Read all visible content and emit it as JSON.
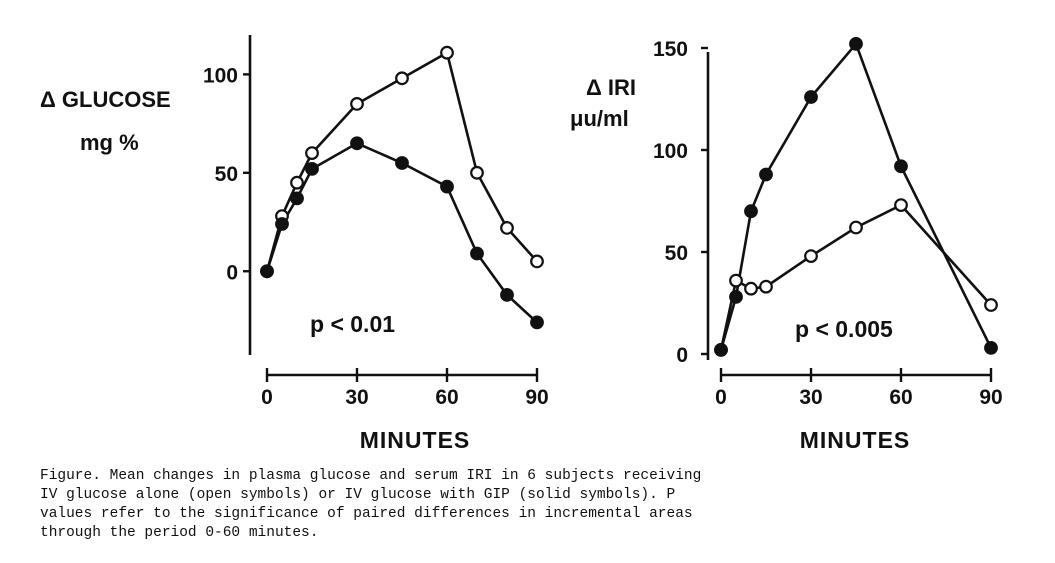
{
  "chart_data": [
    {
      "type": "line",
      "ylabel_lines": [
        "Δ GLUCOSE",
        "mg %"
      ],
      "xlabel": "MINUTES",
      "annotation": "p < 0.01",
      "xlim": [
        0,
        90
      ],
      "ylim": [
        -40,
        120
      ],
      "xticks": [
        0,
        30,
        60,
        90
      ],
      "yticks": [
        0,
        50,
        100
      ],
      "series": [
        {
          "marker": "open-circle",
          "x": [
            0,
            5,
            10,
            15,
            30,
            45,
            60,
            70,
            80,
            90
          ],
          "y": [
            0,
            28,
            45,
            60,
            85,
            98,
            111,
            50,
            22,
            5
          ]
        },
        {
          "marker": "filled-circle",
          "x": [
            0,
            5,
            10,
            15,
            30,
            45,
            60,
            70,
            80,
            90
          ],
          "y": [
            0,
            24,
            37,
            52,
            65,
            55,
            43,
            9,
            -12,
            -26
          ]
        }
      ]
    },
    {
      "type": "line",
      "ylabel_lines": [
        "Δ IRI",
        "μu/ml"
      ],
      "xlabel": "MINUTES",
      "annotation": "p < 0.005",
      "xlim": [
        0,
        90
      ],
      "ylim": [
        0,
        150
      ],
      "xticks": [
        0,
        30,
        60,
        90
      ],
      "yticks": [
        0,
        50,
        100,
        150
      ],
      "series": [
        {
          "marker": "open-circle",
          "x": [
            0,
            5,
            10,
            15,
            30,
            45,
            60,
            90
          ],
          "y": [
            2,
            36,
            32,
            33,
            48,
            62,
            73,
            24
          ]
        },
        {
          "marker": "filled-circle",
          "x": [
            0,
            5,
            10,
            15,
            30,
            45,
            60,
            90
          ],
          "y": [
            2,
            28,
            70,
            88,
            126,
            152,
            92,
            3
          ]
        }
      ]
    }
  ],
  "caption": "Figure.  Mean changes in plasma glucose and serum IRI in 6 subjects receiving\nIV glucose alone (open symbols) or IV glucose with GIP (solid symbols).  P\nvalues refer to the significance of paired differences in incremental areas\nthrough the period 0-60 minutes."
}
